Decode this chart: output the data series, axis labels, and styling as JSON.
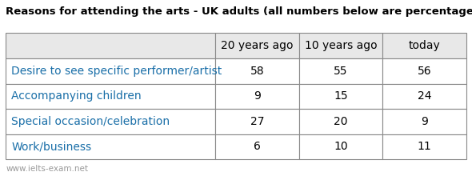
{
  "title": "Reasons for attending the arts - UK adults (all numbers below are percentages)",
  "columns": [
    "20 years ago",
    "10 years ago",
    "today"
  ],
  "rows": [
    "Desire to see specific performer/artist",
    "Accompanying children",
    "Special occasion/celebration",
    "Work/business"
  ],
  "values": [
    [
      58,
      55,
      56
    ],
    [
      9,
      15,
      24
    ],
    [
      27,
      20,
      9
    ],
    [
      6,
      10,
      11
    ]
  ],
  "header_bg": "#e8e8e8",
  "cell_bg": "#ffffff",
  "border_color": "#888888",
  "title_color": "#000000",
  "row_label_color": "#1a6fa8",
  "footer_text": "www.ielts-exam.net",
  "title_fontsize": 9.5,
  "cell_fontsize": 10,
  "row_label_fontsize": 10,
  "footer_fontsize": 7.5
}
